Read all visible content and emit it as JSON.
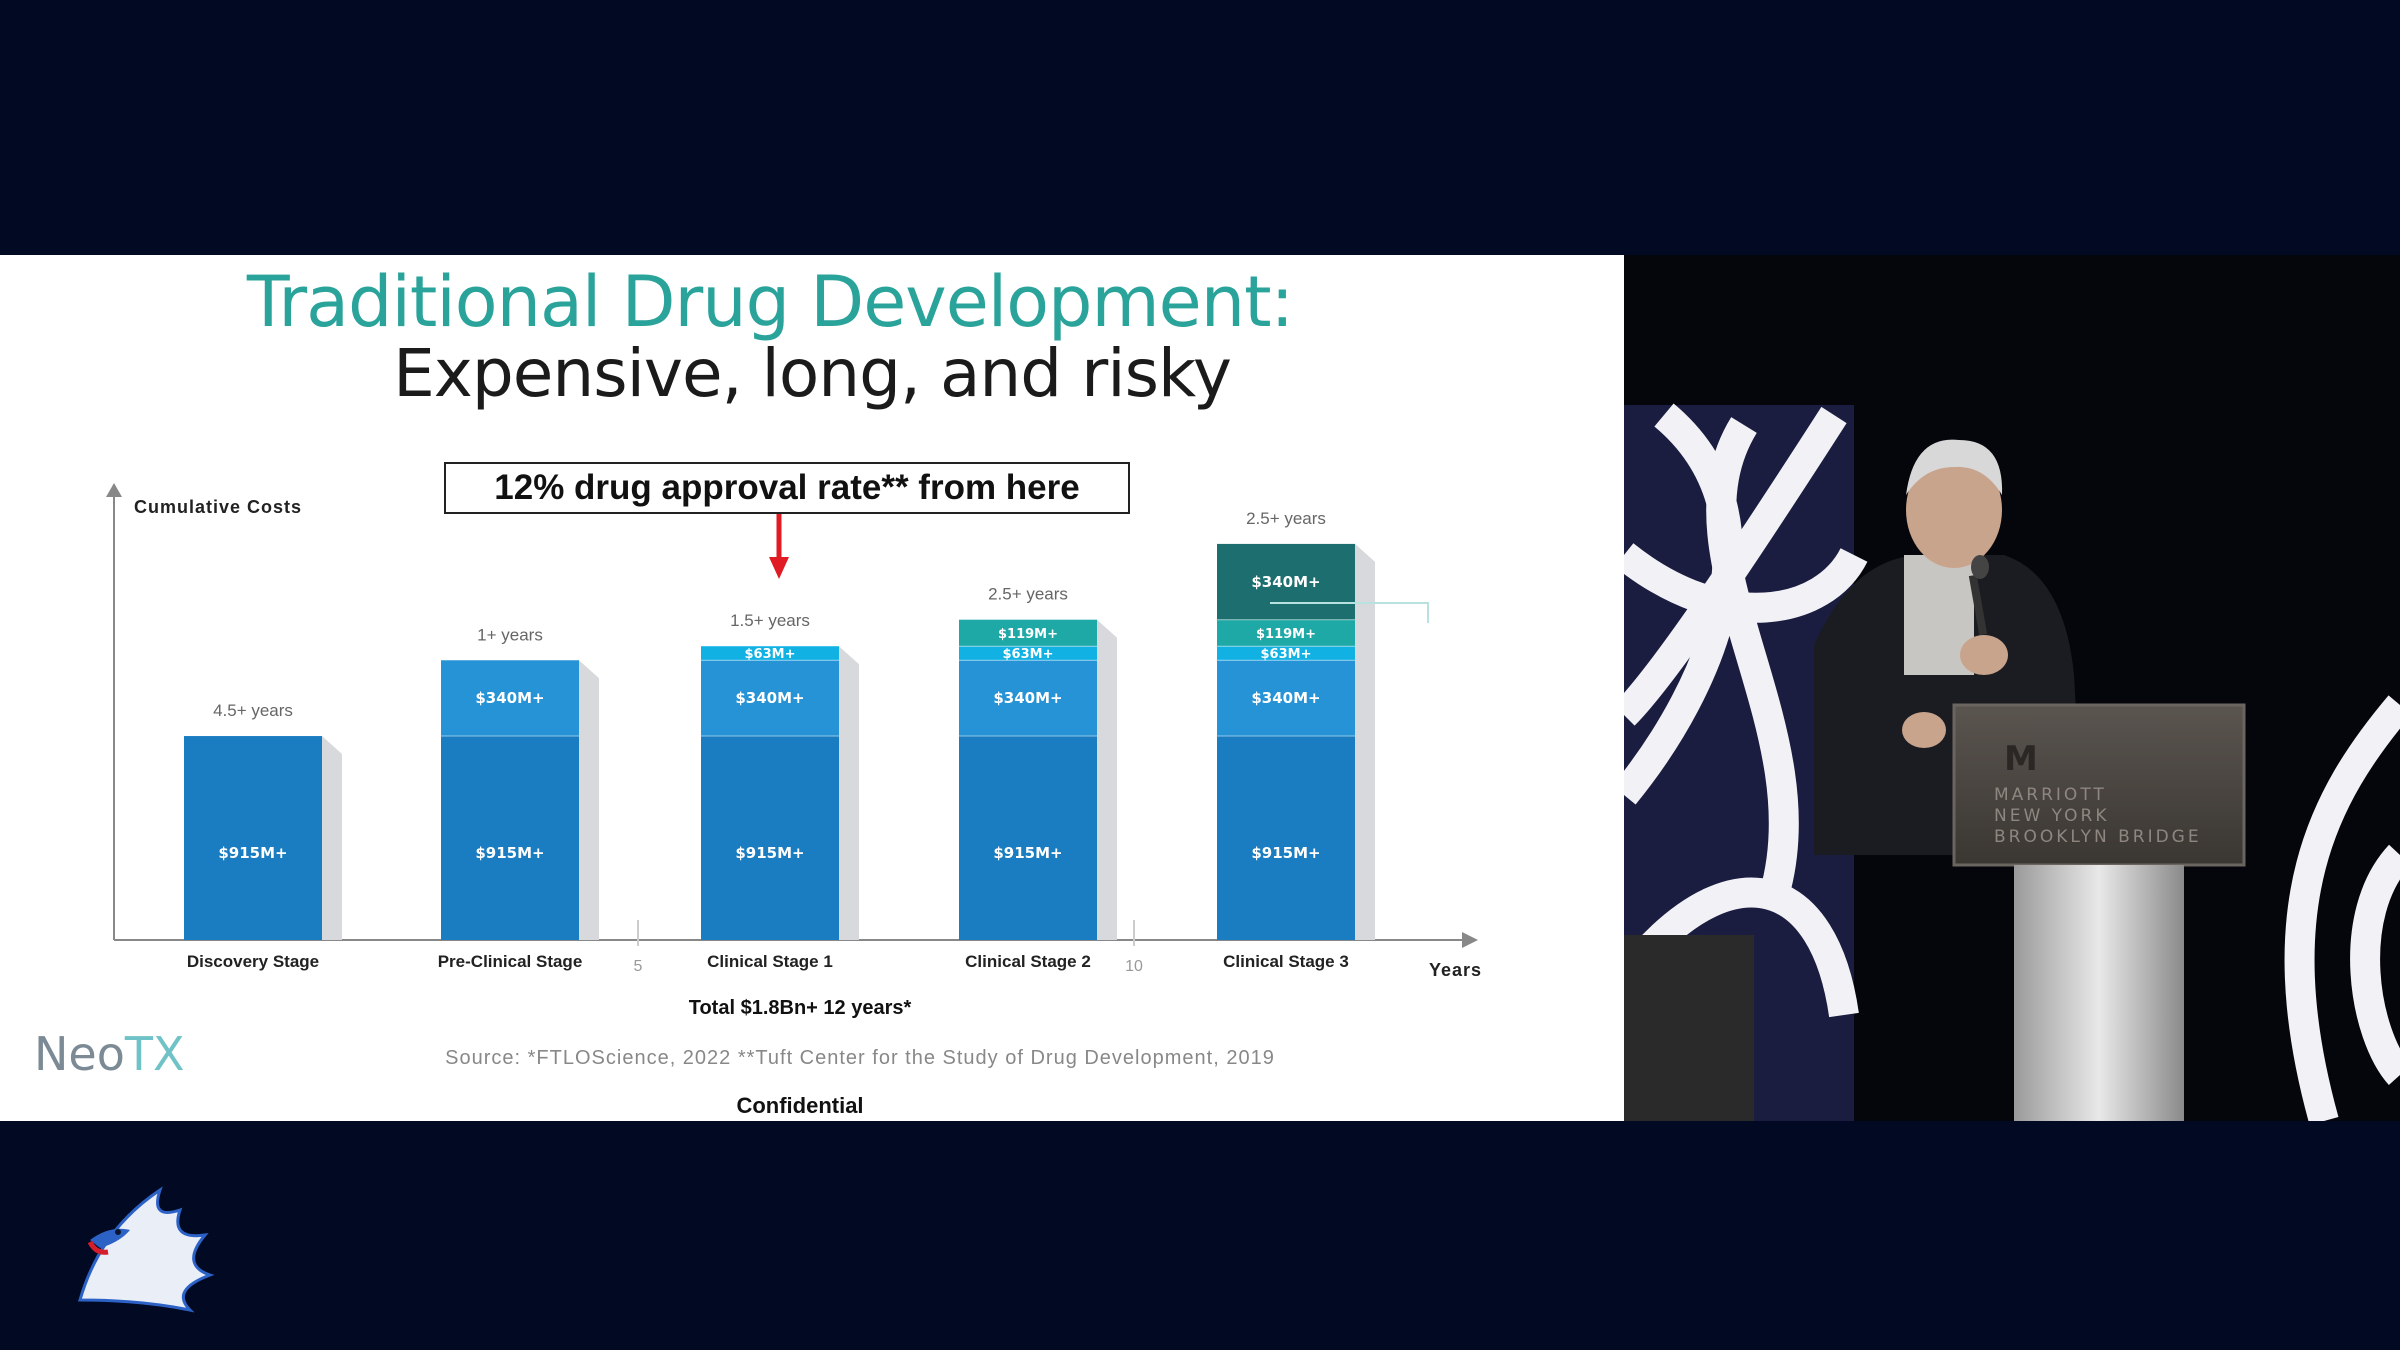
{
  "slide": {
    "title_line1": "Traditional Drug Development:",
    "title_line2": "Expensive, long, and risky",
    "callout": "12% drug approval rate** from here",
    "total": "Total $1.8Bn+ 12 years*",
    "source": "Source: *FTLOScience, 2022 **Tuft Center for the Study of Drug Development, 2019",
    "confidential": "Confidential",
    "logo_neo": "Neo",
    "logo_tx": "TX"
  },
  "podium": {
    "line1": "MARRIOTT",
    "line2": "NEW YORK",
    "line3": "BROOKLYN BRIDGE"
  },
  "colors": {
    "background": "#020a23",
    "teal_title": "#2aa39b",
    "base_blue": "#1a7cc1",
    "mid_blue": "#2593d6",
    "light_blue": "#11b1e3",
    "teal_segment": "#1fa9a6",
    "dark_teal": "#1c6f6e",
    "arrow_red": "#e01b24"
  },
  "chart_data": {
    "type": "bar",
    "stacked": true,
    "ylabel": "Cumulative Costs",
    "xlabel": "Years",
    "x_ticks": [
      "5",
      "10"
    ],
    "categories": [
      "Discovery Stage",
      "Pre-Clinical Stage",
      "Clinical Stage 1",
      "Clinical Stage 2",
      "Clinical Stage 3"
    ],
    "durations": [
      "4.5+ years",
      "1+ years",
      "1.5+ years",
      "2.5+ years",
      "2.5+ years"
    ],
    "series": [
      {
        "values": [
          915,
          915,
          915,
          915,
          915
        ],
        "labels": [
          "$915M+",
          "$915M+",
          "$915M+",
          "$915M+",
          "$915M+"
        ]
      },
      {
        "values": [
          0,
          340,
          340,
          340,
          340
        ],
        "labels": [
          "",
          "$340M+",
          "$340M+",
          "$340M+",
          "$340M+"
        ]
      },
      {
        "values": [
          0,
          0,
          63,
          63,
          63
        ],
        "labels": [
          "",
          "",
          "$63M+",
          "$63M+",
          "$63M+"
        ]
      },
      {
        "values": [
          0,
          0,
          0,
          119,
          119
        ],
        "labels": [
          "",
          "",
          "",
          "$119M+",
          "$119M+"
        ]
      },
      {
        "values": [
          0,
          0,
          0,
          0,
          340
        ],
        "labels": [
          "",
          "",
          "",
          "",
          "$340M+"
        ]
      }
    ],
    "grid": false,
    "legend": "none"
  }
}
